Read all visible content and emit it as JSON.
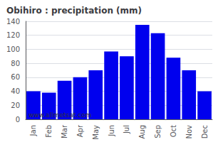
{
  "chart_data": {
    "type": "bar",
    "title": "Obihiro : precipitation (mm)",
    "categories": [
      "Jan",
      "Feb",
      "Mar",
      "Apr",
      "May",
      "Jun",
      "Jul",
      "Aug",
      "Sep",
      "Oct",
      "Nov",
      "Dec"
    ],
    "values": [
      40,
      38,
      55,
      60,
      70,
      97,
      90,
      135,
      123,
      88,
      70,
      40
    ],
    "color": "#0000ee",
    "ylim": [
      0,
      140
    ],
    "yticks": [
      0,
      20,
      40,
      60,
      80,
      100,
      120,
      140
    ],
    "grid": true,
    "annotations": [
      "www.allmetsat.com"
    ]
  }
}
